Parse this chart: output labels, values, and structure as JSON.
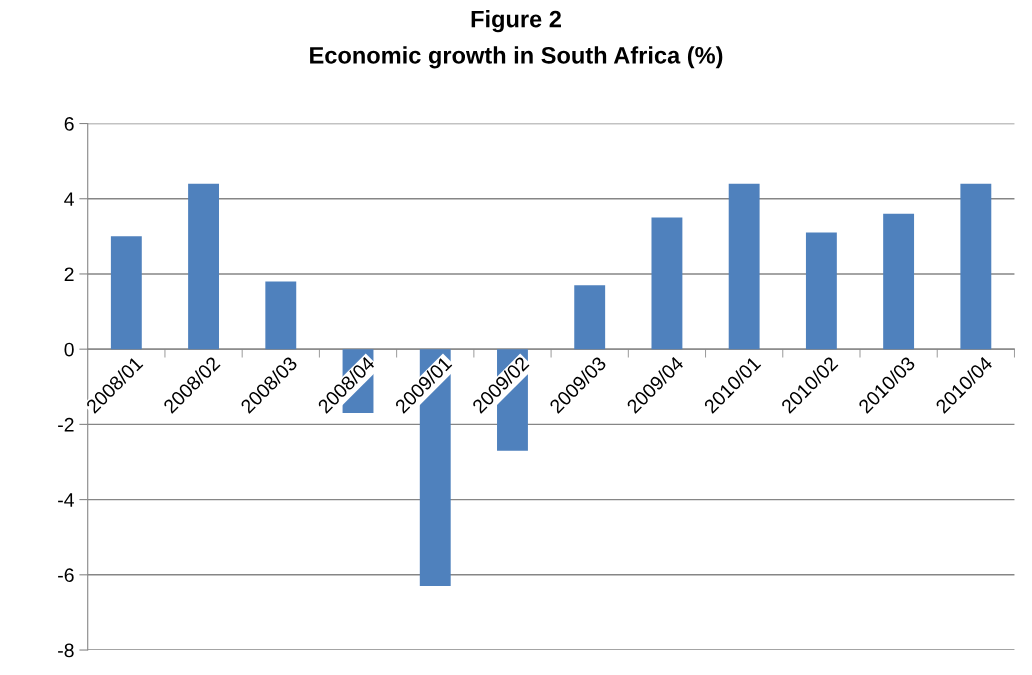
{
  "chart_data": {
    "type": "bar",
    "title": "Figure 2",
    "subtitle": "Economic growth in South Africa (%)",
    "categories": [
      "2008/01",
      "2008/02",
      "2008/03",
      "2008/04",
      "2009/01",
      "2009/02",
      "2009/03",
      "2009/04",
      "2010/01",
      "2010/02",
      "2010/03",
      "2010/04"
    ],
    "values": [
      3.0,
      4.4,
      1.8,
      -1.7,
      -6.3,
      -2.7,
      1.7,
      3.5,
      4.4,
      3.1,
      3.6,
      4.4
    ],
    "color": "#4f81bd",
    "ylim": [
      -8,
      6
    ],
    "yticks": [
      -8,
      -6,
      -4,
      -2,
      0,
      2,
      4,
      6
    ],
    "grid": "y",
    "legend": false
  }
}
